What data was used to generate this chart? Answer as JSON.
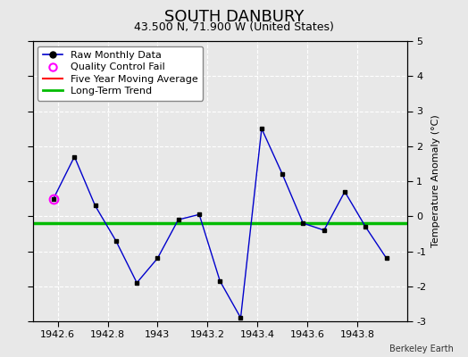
{
  "title": "SOUTH DANBURY",
  "subtitle": "43.500 N, 71.900 W (United States)",
  "credit": "Berkeley Earth",
  "x_values": [
    1942.583,
    1942.667,
    1942.75,
    1942.833,
    1942.917,
    1943.0,
    1943.083,
    1943.167,
    1943.25,
    1943.333,
    1943.417,
    1943.5,
    1943.583,
    1943.667,
    1943.75,
    1943.833,
    1943.917
  ],
  "y_values": [
    0.5,
    1.7,
    0.3,
    -0.7,
    -1.9,
    -1.2,
    -0.1,
    0.05,
    -1.85,
    -2.9,
    2.5,
    1.2,
    -0.2,
    -0.4,
    0.7,
    -0.3,
    -1.2
  ],
  "qc_fail_x": [
    1942.583
  ],
  "qc_fail_y": [
    0.5
  ],
  "long_term_trend_y": -0.2,
  "xlim": [
    1942.5,
    1944.0
  ],
  "ylim": [
    -3,
    5
  ],
  "yticks": [
    -3,
    -2,
    -1,
    0,
    1,
    2,
    3,
    4,
    5
  ],
  "xtick_values": [
    1942.6,
    1942.8,
    1943.0,
    1943.2,
    1943.4,
    1943.6,
    1943.8
  ],
  "xtick_labels": [
    "1942.6",
    "1942.8",
    "1943",
    "1943.2",
    "1943.4",
    "1943.6",
    "1943.8"
  ],
  "ylabel": "Temperature Anomaly (°C)",
  "line_color": "#0000cc",
  "marker_color": "#000000",
  "qc_color": "#ff00ff",
  "five_year_color": "#ff0000",
  "trend_color": "#00bb00",
  "background_color": "#e8e8e8",
  "grid_color": "#ffffff",
  "title_fontsize": 13,
  "subtitle_fontsize": 9,
  "tick_fontsize": 8,
  "legend_fontsize": 8,
  "credit_fontsize": 7
}
